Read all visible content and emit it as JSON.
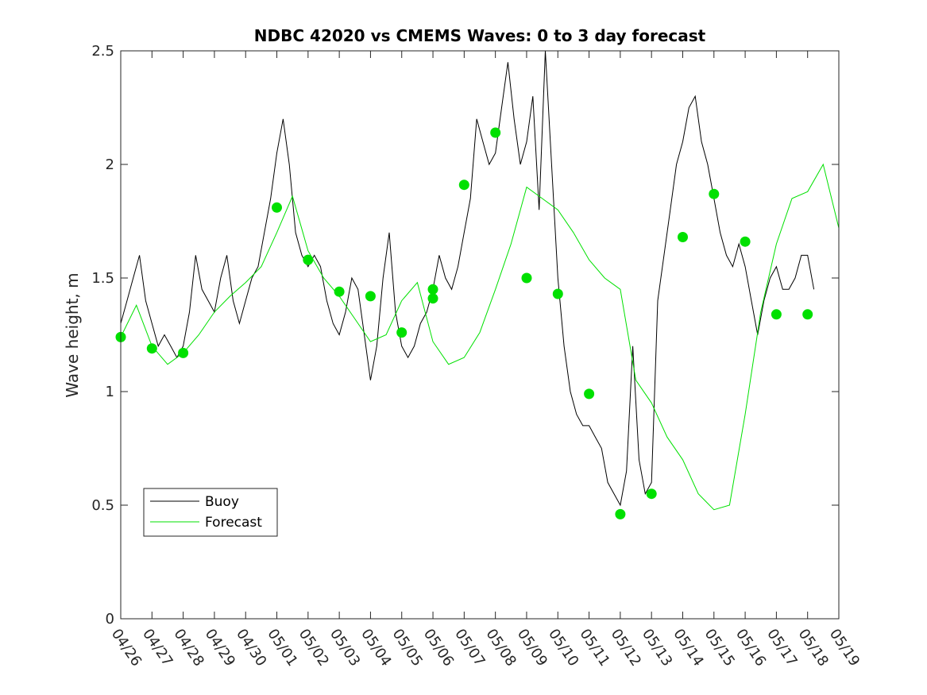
{
  "chart_data": {
    "type": "line",
    "title": "NDBC 42020 vs CMEMS Waves: 0 to 3 day forecast",
    "xlabel": "",
    "ylabel": "Wave height, m",
    "xlim": [
      "04/26",
      "05/19"
    ],
    "ylim": [
      0,
      2.5
    ],
    "x_ticks": [
      "04/26",
      "04/27",
      "04/28",
      "04/29",
      "04/30",
      "05/01",
      "05/02",
      "05/03",
      "05/04",
      "05/05",
      "05/06",
      "05/07",
      "05/08",
      "05/09",
      "05/10",
      "05/11",
      "05/12",
      "05/13",
      "05/14",
      "05/15",
      "05/16",
      "05/17",
      "05/18",
      "05/19"
    ],
    "y_ticks": [
      "0",
      "0.5",
      "1",
      "1.5",
      "2",
      "2.5"
    ],
    "grid": false,
    "legend": {
      "placement": "bottom-left",
      "entries": [
        "Buoy",
        "Forecast"
      ]
    },
    "colors": {
      "buoy": "#000000",
      "forecast": "#00e000",
      "axes": "#262626"
    },
    "series": [
      {
        "name": "Buoy",
        "x_days": [
          0,
          0.2,
          0.4,
          0.6,
          0.8,
          1,
          1.2,
          1.4,
          1.6,
          1.8,
          2,
          2.2,
          2.4,
          2.6,
          2.8,
          3,
          3.2,
          3.4,
          3.6,
          3.8,
          4,
          4.2,
          4.4,
          4.6,
          4.8,
          5,
          5.2,
          5.4,
          5.6,
          5.8,
          6,
          6.2,
          6.4,
          6.6,
          6.8,
          7,
          7.2,
          7.4,
          7.6,
          7.8,
          8,
          8.2,
          8.4,
          8.6,
          8.8,
          9,
          9.2,
          9.4,
          9.6,
          9.8,
          10,
          10.2,
          10.4,
          10.6,
          10.8,
          11,
          11.2,
          11.4,
          11.6,
          11.8,
          12,
          12.2,
          12.4,
          12.6,
          12.8,
          13,
          13.2,
          13.4,
          13.6,
          13.8,
          14,
          14.2,
          14.4,
          14.6,
          14.8,
          15,
          15.2,
          15.4,
          15.6,
          15.8,
          16,
          16.2,
          16.4,
          16.6,
          16.8,
          17,
          17.2,
          17.4,
          17.6,
          17.8,
          18,
          18.2,
          18.4,
          18.6,
          18.8,
          19,
          19.2,
          19.4,
          19.6,
          19.8,
          20,
          20.2,
          20.4,
          20.6,
          20.8,
          21,
          21.2,
          21.4,
          21.6,
          21.8,
          22,
          22.2
        ],
        "values": [
          1.3,
          1.4,
          1.5,
          1.6,
          1.4,
          1.3,
          1.2,
          1.25,
          1.2,
          1.15,
          1.2,
          1.35,
          1.6,
          1.45,
          1.4,
          1.35,
          1.5,
          1.6,
          1.4,
          1.3,
          1.4,
          1.5,
          1.55,
          1.7,
          1.85,
          2.05,
          2.2,
          2.0,
          1.7,
          1.6,
          1.55,
          1.6,
          1.55,
          1.4,
          1.3,
          1.25,
          1.35,
          1.5,
          1.45,
          1.25,
          1.05,
          1.2,
          1.5,
          1.7,
          1.35,
          1.2,
          1.15,
          1.2,
          1.3,
          1.35,
          1.45,
          1.6,
          1.5,
          1.45,
          1.55,
          1.7,
          1.85,
          2.2,
          2.1,
          2.0,
          2.05,
          2.25,
          2.45,
          2.2,
          2.0,
          2.1,
          2.3,
          1.8,
          2.5,
          2.0,
          1.5,
          1.2,
          1.0,
          0.9,
          0.85,
          0.85,
          0.8,
          0.75,
          0.6,
          0.55,
          0.5,
          0.65,
          1.2,
          0.7,
          0.55,
          0.6,
          1.4,
          1.6,
          1.8,
          2.0,
          2.1,
          2.25,
          2.3,
          2.1,
          2.0,
          1.85,
          1.7,
          1.6,
          1.55,
          1.65,
          1.55,
          1.4,
          1.25,
          1.4,
          1.5,
          1.55,
          1.45,
          1.45,
          1.5,
          1.6,
          1.6,
          1.45
        ]
      },
      {
        "name": "Forecast",
        "x_days": [
          0,
          0.5,
          1,
          1.5,
          2,
          2.5,
          3,
          3.5,
          4,
          4.5,
          5,
          5.5,
          6,
          6.5,
          7,
          7.5,
          8,
          8.5,
          9,
          9.5,
          10,
          10.5,
          11,
          11.5,
          12,
          12.5,
          13,
          13.5,
          14,
          14.5,
          15,
          15.5,
          16,
          16.5,
          17,
          17.5,
          18,
          18.5,
          19,
          19.5,
          20,
          20.5,
          21,
          21.5,
          22,
          22.5,
          23
        ],
        "values": [
          1.24,
          1.38,
          1.2,
          1.12,
          1.17,
          1.25,
          1.35,
          1.42,
          1.48,
          1.55,
          1.7,
          1.86,
          1.62,
          1.5,
          1.42,
          1.32,
          1.22,
          1.25,
          1.4,
          1.48,
          1.22,
          1.12,
          1.15,
          1.26,
          1.45,
          1.65,
          1.9,
          1.85,
          1.8,
          1.7,
          1.58,
          1.5,
          1.45,
          1.05,
          0.95,
          0.8,
          0.7,
          0.55,
          0.48,
          0.5,
          0.9,
          1.35,
          1.65,
          1.85,
          1.88,
          2.0,
          1.72
        ]
      }
    ],
    "forecast_markers": {
      "x_days": [
        0,
        1,
        2,
        5,
        6,
        7,
        8,
        9,
        10,
        10,
        11,
        12,
        13,
        14,
        15,
        16,
        17,
        18,
        19,
        20,
        21,
        22
      ],
      "values": [
        1.24,
        1.19,
        1.17,
        1.81,
        1.58,
        1.44,
        1.42,
        1.26,
        1.41,
        1.45,
        1.91,
        2.14,
        1.5,
        1.43,
        0.99,
        0.46,
        0.55,
        1.68,
        1.87,
        1.66,
        1.34,
        1.34
      ]
    }
  }
}
